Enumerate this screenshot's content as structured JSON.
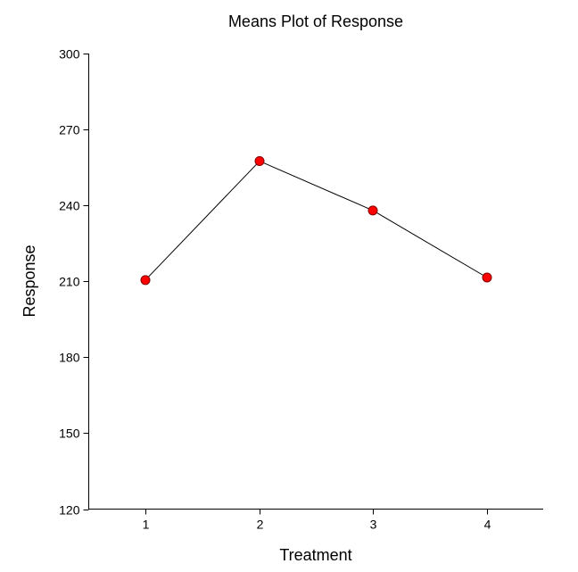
{
  "chart_data": {
    "type": "line",
    "title": "Means Plot of Response",
    "xlabel": "Treatment",
    "ylabel": "Response",
    "categories": [
      "1",
      "2",
      "3",
      "4"
    ],
    "ylim": [
      120,
      300
    ],
    "yticks": [
      120,
      150,
      180,
      210,
      240,
      270,
      300
    ],
    "series": [
      {
        "name": "Response",
        "values": [
          210.5,
          257.5,
          238,
          211.5
        ]
      }
    ],
    "grid": false,
    "legend": "none"
  },
  "colors": {
    "marker_fill": "#ff0000",
    "marker_stroke": "#800000",
    "line": "#000000",
    "axis": "#000000"
  }
}
